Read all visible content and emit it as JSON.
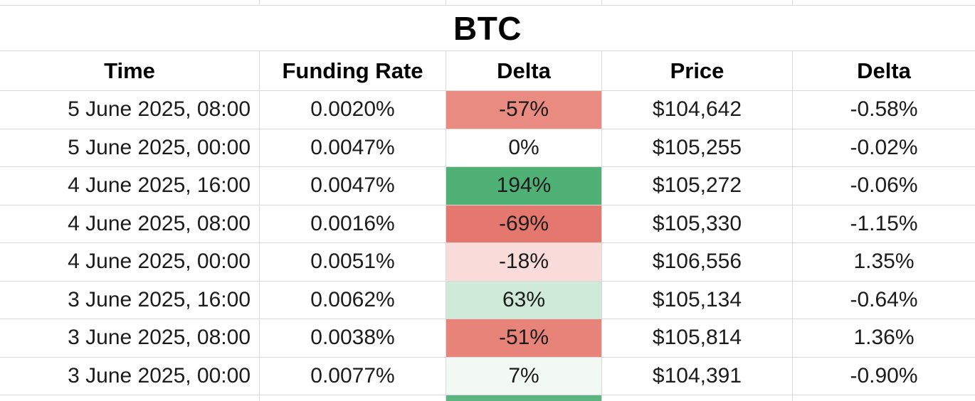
{
  "title": "BTC",
  "columns": [
    "Time",
    "Funding Rate",
    "Delta",
    "Price",
    "Delta"
  ],
  "rows": [
    {
      "time": "5 June 2025, 08:00",
      "funding_rate": "0.0020%",
      "delta": "-57%",
      "delta_bg": "#e98b80",
      "price": "$104,642",
      "price_delta": "-0.58%"
    },
    {
      "time": "5 June 2025, 00:00",
      "funding_rate": "0.0047%",
      "delta": "0%",
      "delta_bg": "#ffffff",
      "price": "$105,255",
      "price_delta": "-0.02%"
    },
    {
      "time": "4 June 2025, 16:00",
      "funding_rate": "0.0047%",
      "delta": "194%",
      "delta_bg": "#50b177",
      "price": "$105,272",
      "price_delta": "-0.06%"
    },
    {
      "time": "4 June 2025, 08:00",
      "funding_rate": "0.0016%",
      "delta": "-69%",
      "delta_bg": "#e5786e",
      "price": "$105,330",
      "price_delta": "-1.15%"
    },
    {
      "time": "4 June 2025, 00:00",
      "funding_rate": "0.0051%",
      "delta": "-18%",
      "delta_bg": "#f9dcd9",
      "price": "$106,556",
      "price_delta": "1.35%"
    },
    {
      "time": "3 June 2025, 16:00",
      "funding_rate": "0.0062%",
      "delta": "63%",
      "delta_bg": "#cfead9",
      "price": "$105,134",
      "price_delta": "-0.64%"
    },
    {
      "time": "3 June 2025, 08:00",
      "funding_rate": "0.0038%",
      "delta": "-51%",
      "delta_bg": "#e8837a",
      "price": "$105,814",
      "price_delta": "1.36%"
    },
    {
      "time": "3 June 2025, 00:00",
      "funding_rate": "0.0077%",
      "delta": "7%",
      "delta_bg": "#f2f9f5",
      "price": "$104,391",
      "price_delta": "-0.90%"
    }
  ],
  "partial_bottom_row": {
    "delta_bg": "#5cb580"
  },
  "colors": {
    "grid_line": "#d9d9d9",
    "data_text": "#1b1b1b",
    "header_text": "#000000",
    "strong_negative": "#e5786e",
    "strong_positive": "#50b177",
    "light_negative": "#f9dcd9",
    "light_positive": "#cfead9"
  }
}
